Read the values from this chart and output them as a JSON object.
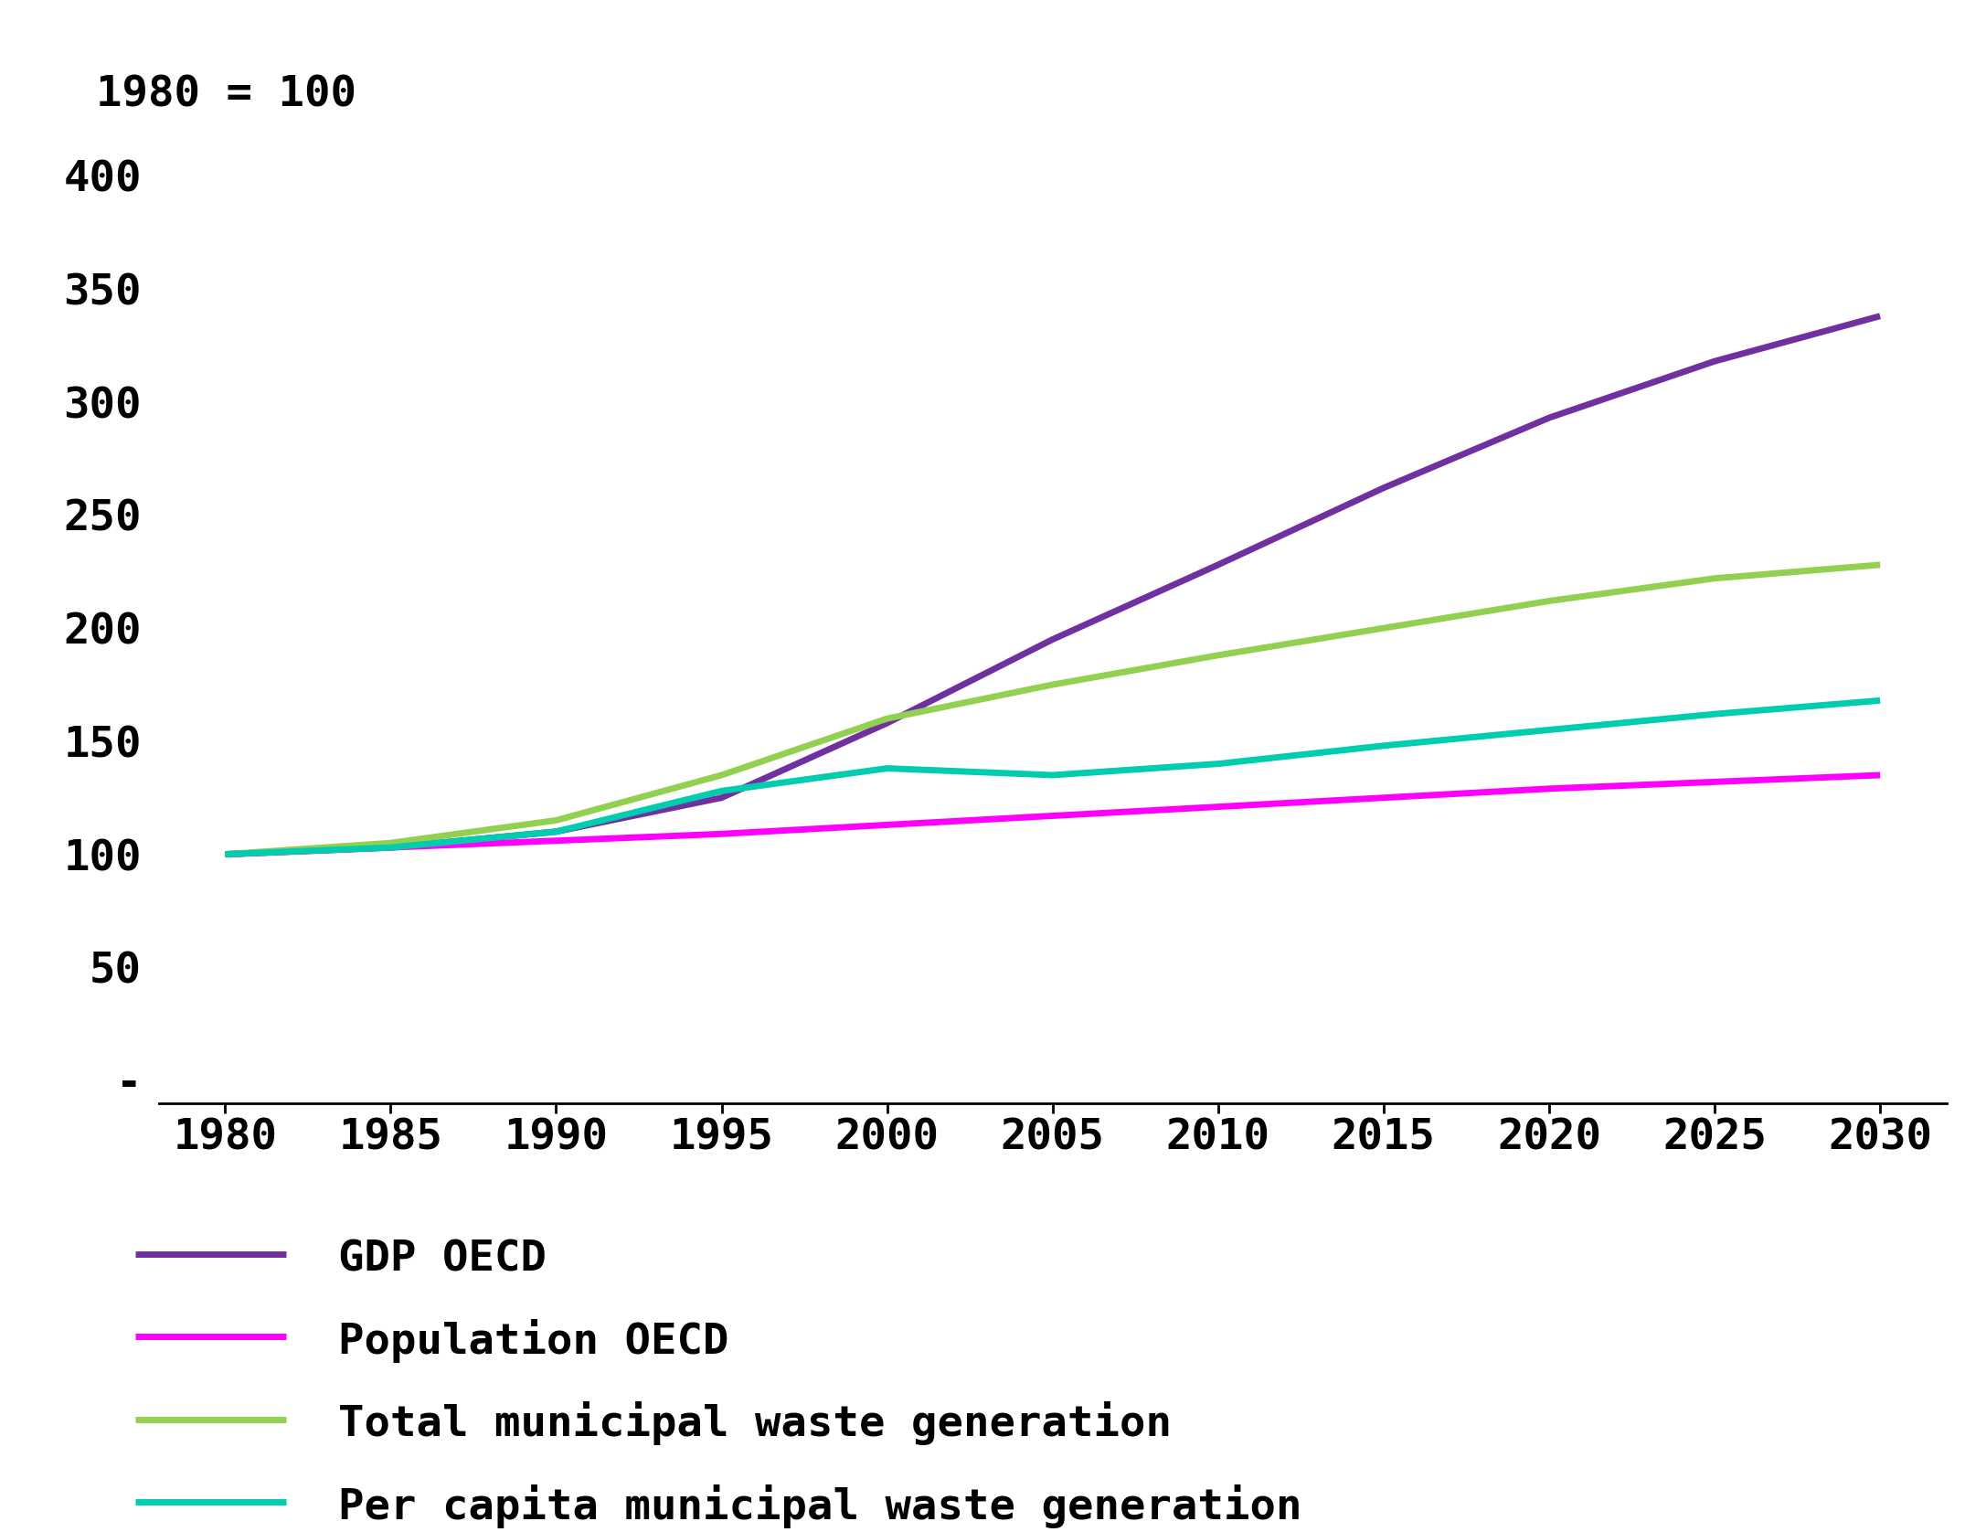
{
  "title": "1980 = 100",
  "years": [
    1980,
    1985,
    1990,
    1995,
    2000,
    2005,
    2010,
    2015,
    2020,
    2025,
    2030
  ],
  "series": {
    "GDP OECD": {
      "color": "#7030A0",
      "values": [
        100,
        103,
        110,
        125,
        158,
        195,
        228,
        262,
        293,
        318,
        338
      ]
    },
    "Population OECD": {
      "color": "#FF00FF",
      "values": [
        100,
        103,
        106,
        109,
        113,
        117,
        121,
        125,
        129,
        132,
        135
      ]
    },
    "Total municipal waste generation": {
      "color": "#92D050",
      "values": [
        100,
        105,
        115,
        135,
        160,
        175,
        188,
        200,
        212,
        222,
        228
      ]
    },
    "Per capita municipal waste generation": {
      "color": "#00CDB0",
      "values": [
        100,
        103,
        110,
        128,
        138,
        135,
        140,
        148,
        155,
        162,
        168
      ]
    }
  },
  "ylim": [
    -10,
    410
  ],
  "yticks": [
    0,
    50,
    100,
    150,
    200,
    250,
    300,
    350,
    400
  ],
  "ytick_labels": [
    "-",
    "50",
    "100",
    "150",
    "200",
    "250",
    "300",
    "350",
    "400"
  ],
  "xlim": [
    1978,
    2032
  ],
  "xticks": [
    1980,
    1985,
    1990,
    1995,
    2000,
    2005,
    2010,
    2015,
    2020,
    2025,
    2030
  ],
  "background_color": "#FFFFFF",
  "line_width": 5.0,
  "legend_fontsize": 34,
  "tick_fontsize": 34,
  "title_fontsize": 34
}
